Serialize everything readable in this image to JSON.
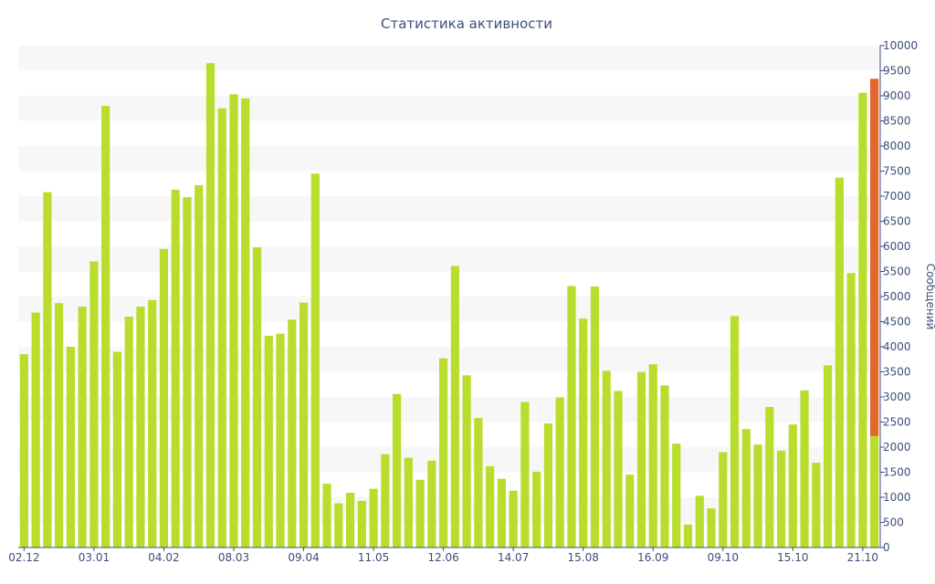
{
  "chart_data": {
    "type": "bar",
    "title": "Статистика активности",
    "xlabel": "",
    "ylabel": "Сообщений",
    "ylim": [
      0,
      10000
    ],
    "ytick_step": 500,
    "x_tick_labels": [
      "02.12",
      "03.01",
      "04.02",
      "08.03",
      "09.04",
      "11.05",
      "12.06",
      "14.07",
      "15.08",
      "16.09",
      "09.10",
      "15.10",
      "21.10"
    ],
    "x_tick_positions": [
      0,
      6,
      12,
      18,
      24,
      30,
      36,
      42,
      48,
      54,
      60,
      66,
      72
    ],
    "series": [
      {
        "values": [
          3850,
          4680,
          7080,
          4870,
          4000,
          4800,
          5700,
          8800,
          3900,
          4600,
          4800,
          4930,
          5950,
          7130,
          6980,
          7220,
          9650,
          8750,
          9030,
          8950,
          5980,
          4220,
          4260,
          4540,
          4880,
          7450,
          1270,
          880,
          1090,
          930,
          1170,
          1860,
          3060,
          1790,
          1350,
          1730,
          3770,
          5610,
          3430,
          2580,
          1620,
          1370,
          1130,
          2900,
          1510,
          2470,
          2990,
          5210,
          4560,
          5200,
          3520,
          3120,
          1450,
          3500,
          3650,
          3230,
          2070,
          460,
          1030,
          780,
          1900,
          4610,
          2360,
          2050,
          2800,
          1930,
          2450,
          3130,
          1690,
          3630,
          7370,
          5470,
          9060,
          2220
        ]
      },
      {
        "values": [
          0,
          0,
          0,
          0,
          0,
          0,
          0,
          0,
          0,
          0,
          0,
          0,
          0,
          0,
          0,
          0,
          0,
          0,
          0,
          0,
          0,
          0,
          0,
          0,
          0,
          0,
          0,
          0,
          0,
          0,
          0,
          0,
          0,
          0,
          0,
          0,
          0,
          0,
          0,
          0,
          0,
          0,
          0,
          0,
          0,
          0,
          0,
          0,
          0,
          0,
          0,
          0,
          0,
          0,
          0,
          0,
          0,
          0,
          0,
          0,
          0,
          0,
          0,
          0,
          0,
          0,
          0,
          0,
          0,
          0,
          0,
          0,
          0,
          7120
        ]
      }
    ],
    "colors": {
      "primary": "#b8dd2c",
      "secondary": "#e5662c",
      "axis": "#3d4f7a",
      "band": "#f7f7f7"
    },
    "grid": "horizontal bands",
    "legend": "none"
  }
}
